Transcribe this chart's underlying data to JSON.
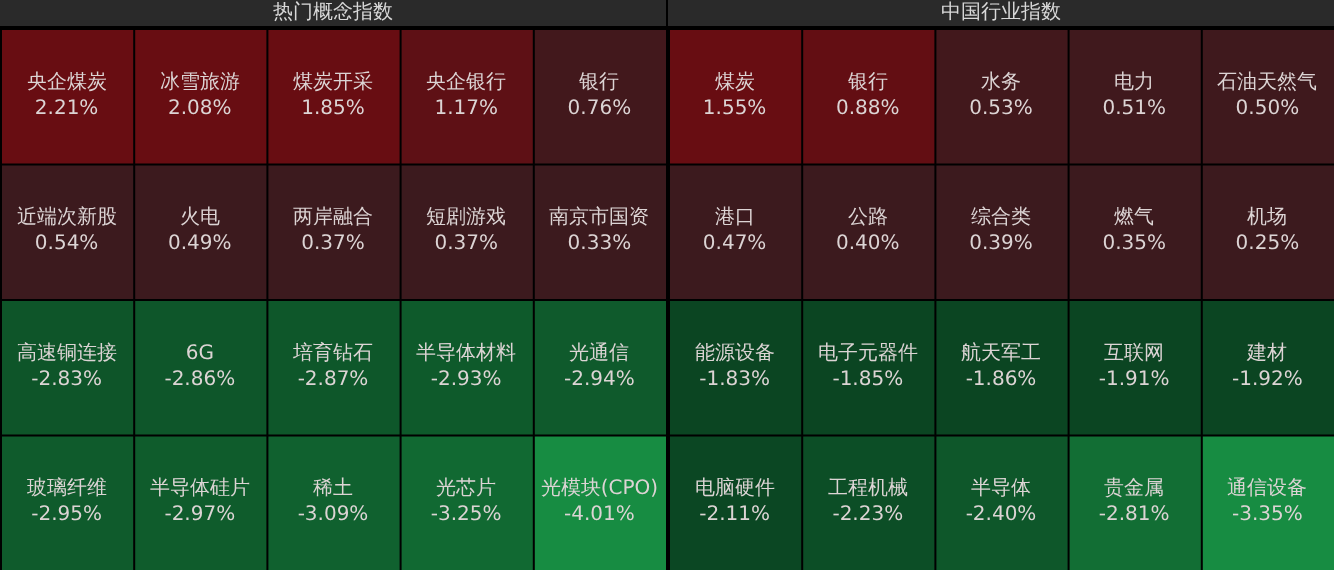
{
  "chart_data": [
    {
      "type": "other",
      "title": "热门概念指数",
      "categories": [
        "央企煤炭",
        "冰雪旅游",
        "煤炭开采",
        "央企银行",
        "银行",
        "近端次新股",
        "火电",
        "两岸融合",
        "短剧游戏",
        "南京市国资",
        "高速铜连接",
        "6G",
        "培育钻石",
        "半导体材料",
        "光通信",
        "玻璃纤维",
        "半导体硅片",
        "稀土",
        "光芯片",
        "光模块(CPO)"
      ],
      "values": [
        2.21,
        2.08,
        1.85,
        1.17,
        0.76,
        0.54,
        0.49,
        0.37,
        0.37,
        0.33,
        -2.83,
        -2.86,
        -2.87,
        -2.93,
        -2.94,
        -2.95,
        -2.97,
        -3.09,
        -3.25,
        -4.01
      ],
      "value_labels": [
        "2.21%",
        "2.08%",
        "1.85%",
        "1.17%",
        "0.76%",
        "0.54%",
        "0.49%",
        "0.37%",
        "0.37%",
        "0.33%",
        "-2.83%",
        "-2.86%",
        "-2.87%",
        "-2.93%",
        "-2.94%",
        "-2.95%",
        "-2.97%",
        "-3.09%",
        "-3.25%",
        "-4.01%"
      ]
    },
    {
      "type": "other",
      "title": "中国行业指数",
      "categories": [
        "煤炭",
        "银行",
        "水务",
        "电力",
        "石油天然气",
        "港口",
        "公路",
        "综合类",
        "燃气",
        "机场",
        "能源设备",
        "电子元器件",
        "航天军工",
        "互联网",
        "建材",
        "电脑硬件",
        "工程机械",
        "半导体",
        "贵金属",
        "通信设备"
      ],
      "values": [
        1.55,
        0.88,
        0.53,
        0.51,
        0.5,
        0.47,
        0.4,
        0.39,
        0.35,
        0.25,
        -1.83,
        -1.85,
        -1.86,
        -1.91,
        -1.92,
        -2.11,
        -2.23,
        -2.4,
        -2.81,
        -3.35
      ],
      "value_labels": [
        "1.55%",
        "0.88%",
        "0.53%",
        "0.51%",
        "0.50%",
        "0.47%",
        "0.40%",
        "0.39%",
        "0.35%",
        "0.25%",
        "-1.83%",
        "-1.85%",
        "-1.86%",
        "-1.91%",
        "-1.92%",
        "-2.11%",
        "-2.23%",
        "-2.40%",
        "-2.81%",
        "-3.35%"
      ]
    }
  ]
}
